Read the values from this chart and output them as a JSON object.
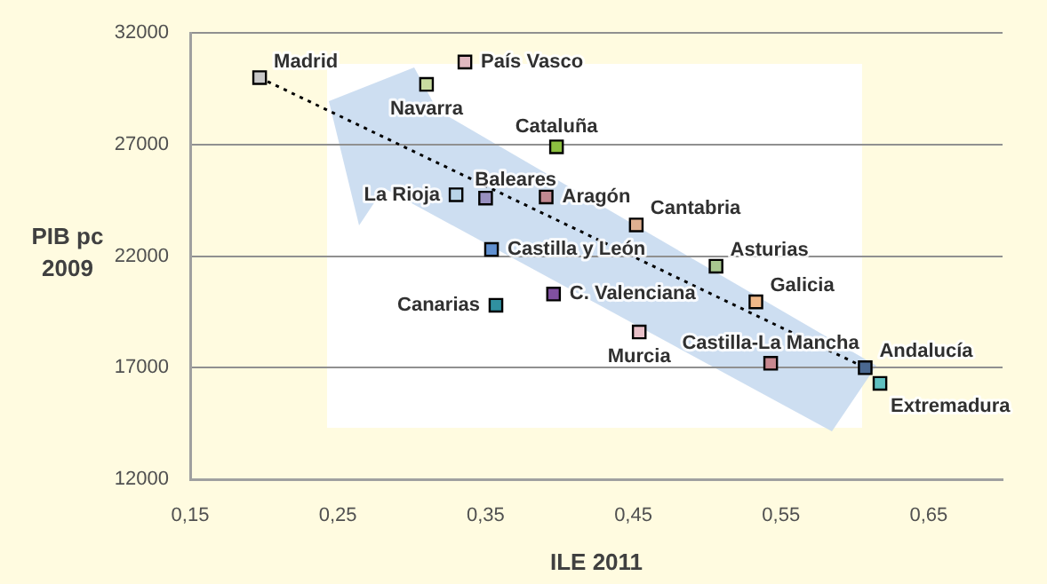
{
  "chart_data": {
    "type": "scatter",
    "xlabel": "ILE 2011",
    "ylabel": "PIB pc 2009",
    "xlim": [
      0.15,
      0.7
    ],
    "ylim": [
      12000,
      32000
    ],
    "xticks": [
      {
        "value": 0.15,
        "label": "0,15"
      },
      {
        "value": 0.25,
        "label": "0,25"
      },
      {
        "value": 0.35,
        "label": "0,35"
      },
      {
        "value": 0.45,
        "label": "0,45"
      },
      {
        "value": 0.55,
        "label": "0,55"
      },
      {
        "value": 0.65,
        "label": "0,65"
      }
    ],
    "yticks": [
      12000,
      17000,
      22000,
      27000,
      32000
    ],
    "grid": "y",
    "legend": false,
    "marker": "square",
    "series": [
      {
        "name": "Madrid",
        "color": "#c8c8c8",
        "x": [
          0.197
        ],
        "values": [
          30000
        ]
      },
      {
        "name": "País Vasco",
        "color": "#e0b8c0",
        "x": [
          0.336
        ],
        "values": [
          30700
        ]
      },
      {
        "name": "Navarra",
        "color": "#c8dca0",
        "x": [
          0.31
        ],
        "values": [
          29700
        ]
      },
      {
        "name": "Cataluña",
        "color": "#8cc040",
        "x": [
          0.398
        ],
        "values": [
          26900
        ]
      },
      {
        "name": "La Rioja",
        "color": "#b8d4e8",
        "x": [
          0.33
        ],
        "values": [
          24750
        ]
      },
      {
        "name": "Baleares",
        "color": "#9890c0",
        "x": [
          0.35
        ],
        "values": [
          24600
        ]
      },
      {
        "name": "Aragón",
        "color": "#c08890",
        "x": [
          0.391
        ],
        "values": [
          24650
        ]
      },
      {
        "name": "Cantabria",
        "color": "#e0b090",
        "x": [
          0.452
        ],
        "values": [
          23400
        ]
      },
      {
        "name": "Asturias",
        "color": "#a8c890",
        "x": [
          0.506
        ],
        "values": [
          21550
        ]
      },
      {
        "name": "Castilla y León",
        "color": "#6090d0",
        "x": [
          0.354
        ],
        "values": [
          22300
        ]
      },
      {
        "name": "C. Valenciana",
        "color": "#8050a0",
        "x": [
          0.396
        ],
        "values": [
          20300
        ]
      },
      {
        "name": "Canarias",
        "color": "#3090a0",
        "x": [
          0.357
        ],
        "values": [
          19800
        ]
      },
      {
        "name": "Galicia",
        "color": "#f0b888",
        "x": [
          0.533
        ],
        "values": [
          19950
        ]
      },
      {
        "name": "Murcia",
        "color": "#e8c0c8",
        "x": [
          0.454
        ],
        "values": [
          18600
        ]
      },
      {
        "name": "Castilla-La Mancha",
        "color": "#c88890",
        "x": [
          0.543
        ],
        "values": [
          17200
        ]
      },
      {
        "name": "Andalucía",
        "color": "#4a6890",
        "x": [
          0.607
        ],
        "values": [
          17000
        ]
      },
      {
        "name": "Extremadura",
        "color": "#60c0c0",
        "x": [
          0.617
        ],
        "values": [
          16300
        ]
      },
      {
        "type": "line",
        "color": "#000000",
        "line_style": "dotted",
        "marker": "none",
        "x": [
          0.197,
          0.607
        ],
        "values": [
          30000,
          17000
        ]
      }
    ]
  }
}
